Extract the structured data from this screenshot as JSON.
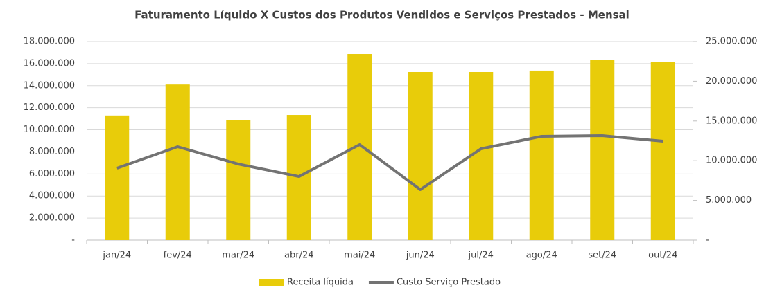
{
  "chart_data": {
    "type": "bar_line",
    "title": "Faturamento Líquido X Custos dos Produtos Vendidos e Serviços Prestados - Mensal",
    "categories": [
      "jan/24",
      "fev/24",
      "mar/24",
      "abr/24",
      "mai/24",
      "jun/24",
      "jul/24",
      "ago/24",
      "set/24",
      "out/24"
    ],
    "series": [
      {
        "name": "Receita líquida",
        "color": "#e8cc0a",
        "type": "bar",
        "axis": "y",
        "values": [
          11300000,
          14100000,
          10900000,
          11350000,
          16870000,
          15240000,
          15240000,
          15370000,
          16310000,
          16180000
        ]
      },
      {
        "name": "Custo Serviço Prestado",
        "color": "#737373",
        "type": "line",
        "axis": "y2",
        "values": [
          9060000,
          11760000,
          9580000,
          8010000,
          12020000,
          6360000,
          11500000,
          13070000,
          13150000,
          12460000
        ]
      }
    ],
    "ylim": [
      0,
      18000000
    ],
    "yticks": [
      {
        "value": 0,
        "label": "-"
      },
      {
        "value": 2000000,
        "label": "2.000.000"
      },
      {
        "value": 4000000,
        "label": "4.000.000"
      },
      {
        "value": 6000000,
        "label": "6.000.000"
      },
      {
        "value": 8000000,
        "label": "8.000.000"
      },
      {
        "value": 10000000,
        "label": "10.000.000"
      },
      {
        "value": 12000000,
        "label": "12.000.000"
      },
      {
        "value": 14000000,
        "label": "14.000.000"
      },
      {
        "value": 16000000,
        "label": "16.000.000"
      },
      {
        "value": 18000000,
        "label": "18.000.000"
      }
    ],
    "y2lim": [
      0,
      25000000
    ],
    "y2ticks": [
      {
        "value": 0,
        "label": "-"
      },
      {
        "value": 5000000,
        "label": "5.000.000"
      },
      {
        "value": 10000000,
        "label": "10.000.000"
      },
      {
        "value": 15000000,
        "label": "15.000.000"
      },
      {
        "value": 20000000,
        "label": "20.000.000"
      },
      {
        "value": 25000000,
        "label": "25.000.000"
      }
    ],
    "grid": true,
    "legend": "bottom"
  }
}
